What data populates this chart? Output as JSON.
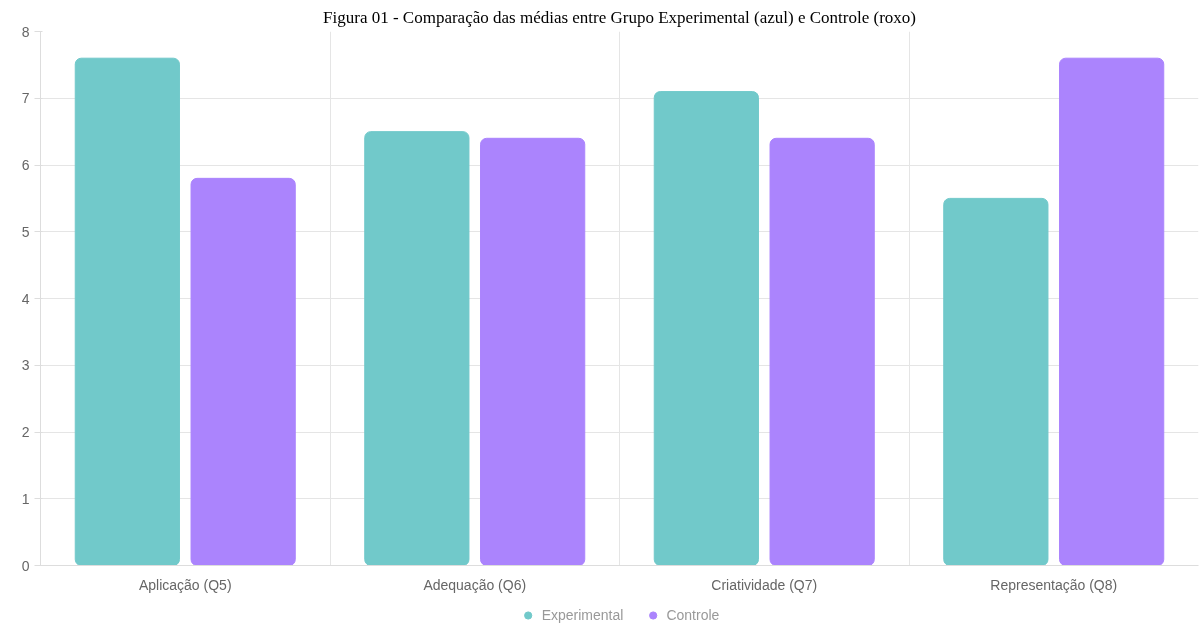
{
  "chart_data": {
    "type": "bar",
    "title": "Figura 01 - Comparação das médias entre Grupo Experimental (azul) e Controle (roxo)",
    "categories": [
      "Aplicação (Q5)",
      "Adequação (Q6)",
      "Criatividade (Q7)",
      "Representação (Q8)"
    ],
    "series": [
      {
        "name": "Experimental",
        "color": "#71c9ca",
        "values": [
          7.6,
          6.5,
          7.1,
          5.5
        ]
      },
      {
        "name": "Controle",
        "color": "#ab84fd",
        "values": [
          5.8,
          6.4,
          6.4,
          7.6
        ]
      }
    ],
    "ylim": [
      0,
      8
    ],
    "yticks": [
      0,
      1,
      2,
      3,
      4,
      5,
      6,
      7,
      8
    ],
    "grid": true,
    "legend": "bottom"
  }
}
